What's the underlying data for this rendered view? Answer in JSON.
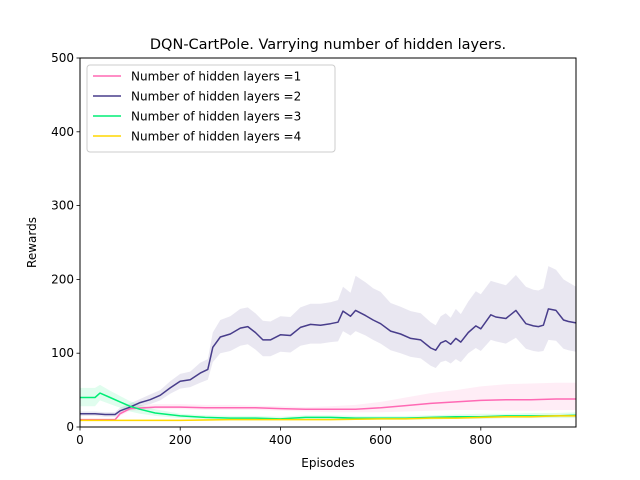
{
  "chart_data": {
    "type": "line",
    "title": "DQN-CartPole. Varrying number of hidden layers.",
    "xlabel": "Episodes",
    "ylabel": "Rewards",
    "xlim": [
      0,
      990
    ],
    "ylim": [
      0,
      500
    ],
    "xticks": [
      0,
      200,
      400,
      600,
      800
    ],
    "yticks": [
      0,
      100,
      200,
      300,
      400,
      500
    ],
    "grid": false,
    "legend_position": "top-left",
    "series": [
      {
        "name": "Number of hidden layers =1",
        "color": "#ff69b4",
        "x": [
          0,
          40,
          70,
          80,
          100,
          150,
          200,
          250,
          300,
          350,
          400,
          450,
          500,
          550,
          600,
          650,
          700,
          750,
          800,
          850,
          900,
          950,
          990
        ],
        "y": [
          10,
          10,
          10,
          18,
          25,
          27,
          27,
          26,
          26,
          26,
          25,
          24,
          24,
          24,
          26,
          29,
          32,
          34,
          36,
          37,
          37,
          38,
          38
        ],
        "band_lower": [
          9,
          9,
          9,
          15,
          22,
          24,
          24,
          23,
          23,
          23,
          22,
          21,
          20,
          20,
          20,
          21,
          22,
          23,
          23,
          22,
          22,
          23,
          23
        ],
        "band_upper": [
          11,
          11,
          11,
          21,
          28,
          31,
          31,
          30,
          30,
          29,
          28,
          27,
          28,
          30,
          34,
          40,
          46,
          50,
          55,
          58,
          59,
          60,
          60
        ]
      },
      {
        "name": "Number of hidden layers =2",
        "color": "#483d8b",
        "x": [
          0,
          30,
          50,
          70,
          80,
          100,
          120,
          140,
          160,
          180,
          200,
          220,
          240,
          255,
          265,
          280,
          300,
          320,
          335,
          350,
          365,
          380,
          400,
          420,
          440,
          460,
          480,
          500,
          515,
          525,
          540,
          550,
          570,
          585,
          600,
          620,
          640,
          660,
          680,
          700,
          710,
          720,
          730,
          740,
          750,
          760,
          775,
          790,
          800,
          820,
          830,
          850,
          870,
          890,
          905,
          915,
          925,
          935,
          950,
          965,
          975,
          990
        ],
        "y": [
          18,
          18,
          17,
          17,
          22,
          27,
          33,
          37,
          43,
          53,
          62,
          64,
          73,
          78,
          108,
          122,
          126,
          134,
          136,
          128,
          118,
          118,
          125,
          124,
          135,
          139,
          138,
          140,
          142,
          157,
          150,
          158,
          151,
          145,
          140,
          130,
          126,
          120,
          118,
          107,
          104,
          114,
          117,
          112,
          120,
          115,
          128,
          137,
          133,
          152,
          149,
          147,
          158,
          140,
          137,
          136,
          138,
          160,
          158,
          145,
          143,
          141
        ],
        "band_lower": [
          15,
          15,
          14,
          14,
          18,
          23,
          28,
          31,
          36,
          45,
          52,
          54,
          60,
          64,
          88,
          100,
          103,
          110,
          112,
          105,
          96,
          96,
          102,
          101,
          110,
          113,
          113,
          115,
          116,
          130,
          124,
          130,
          124,
          118,
          113,
          104,
          100,
          95,
          93,
          83,
          80,
          88,
          90,
          86,
          92,
          88,
          100,
          107,
          103,
          118,
          116,
          113,
          121,
          106,
          103,
          102,
          103,
          118,
          117,
          106,
          104,
          102
        ],
        "band_upper": [
          21,
          21,
          20,
          20,
          26,
          32,
          38,
          44,
          50,
          62,
          72,
          75,
          87,
          92,
          128,
          145,
          150,
          160,
          162,
          154,
          144,
          143,
          150,
          149,
          162,
          167,
          167,
          169,
          172,
          190,
          182,
          205,
          196,
          188,
          183,
          168,
          163,
          157,
          154,
          142,
          138,
          150,
          154,
          148,
          160,
          153,
          170,
          184,
          180,
          198,
          196,
          192,
          206,
          190,
          186,
          185,
          188,
          218,
          213,
          200,
          196,
          190
        ]
      },
      {
        "name": "Number of hidden layers =3",
        "color": "#00ee76",
        "x": [
          0,
          30,
          40,
          60,
          80,
          100,
          120,
          150,
          200,
          250,
          300,
          350,
          400,
          450,
          500,
          550,
          600,
          650,
          700,
          750,
          800,
          850,
          900,
          950,
          990
        ],
        "y": [
          40,
          40,
          46,
          40,
          34,
          28,
          24,
          19,
          15,
          13,
          12,
          12,
          11,
          13,
          13,
          12,
          12,
          12,
          13,
          14,
          14,
          15,
          15,
          15,
          16
        ],
        "band_lower": [
          28,
          28,
          36,
          31,
          26,
          21,
          18,
          15,
          12,
          10,
          9,
          9,
          9,
          10,
          10,
          10,
          10,
          10,
          10,
          11,
          11,
          12,
          12,
          12,
          12
        ],
        "band_upper": [
          53,
          53,
          57,
          49,
          42,
          35,
          30,
          24,
          18,
          16,
          15,
          15,
          14,
          16,
          16,
          15,
          15,
          15,
          16,
          17,
          18,
          18,
          19,
          19,
          20
        ]
      },
      {
        "name": "Number of hidden layers =4",
        "color": "#ffd700",
        "x": [
          0,
          100,
          200,
          300,
          400,
          500,
          600,
          650,
          700,
          750,
          800,
          850,
          900,
          950,
          990
        ],
        "y": [
          9,
          9,
          9,
          10,
          10,
          10,
          11,
          11,
          12,
          12,
          13,
          14,
          14,
          15,
          15
        ],
        "band_lower": [
          8,
          8,
          8,
          9,
          9,
          9,
          10,
          10,
          10,
          11,
          11,
          12,
          12,
          13,
          13
        ],
        "band_upper": [
          10,
          10,
          10,
          11,
          11,
          11,
          12,
          12,
          13,
          14,
          15,
          16,
          16,
          17,
          17
        ]
      }
    ]
  }
}
